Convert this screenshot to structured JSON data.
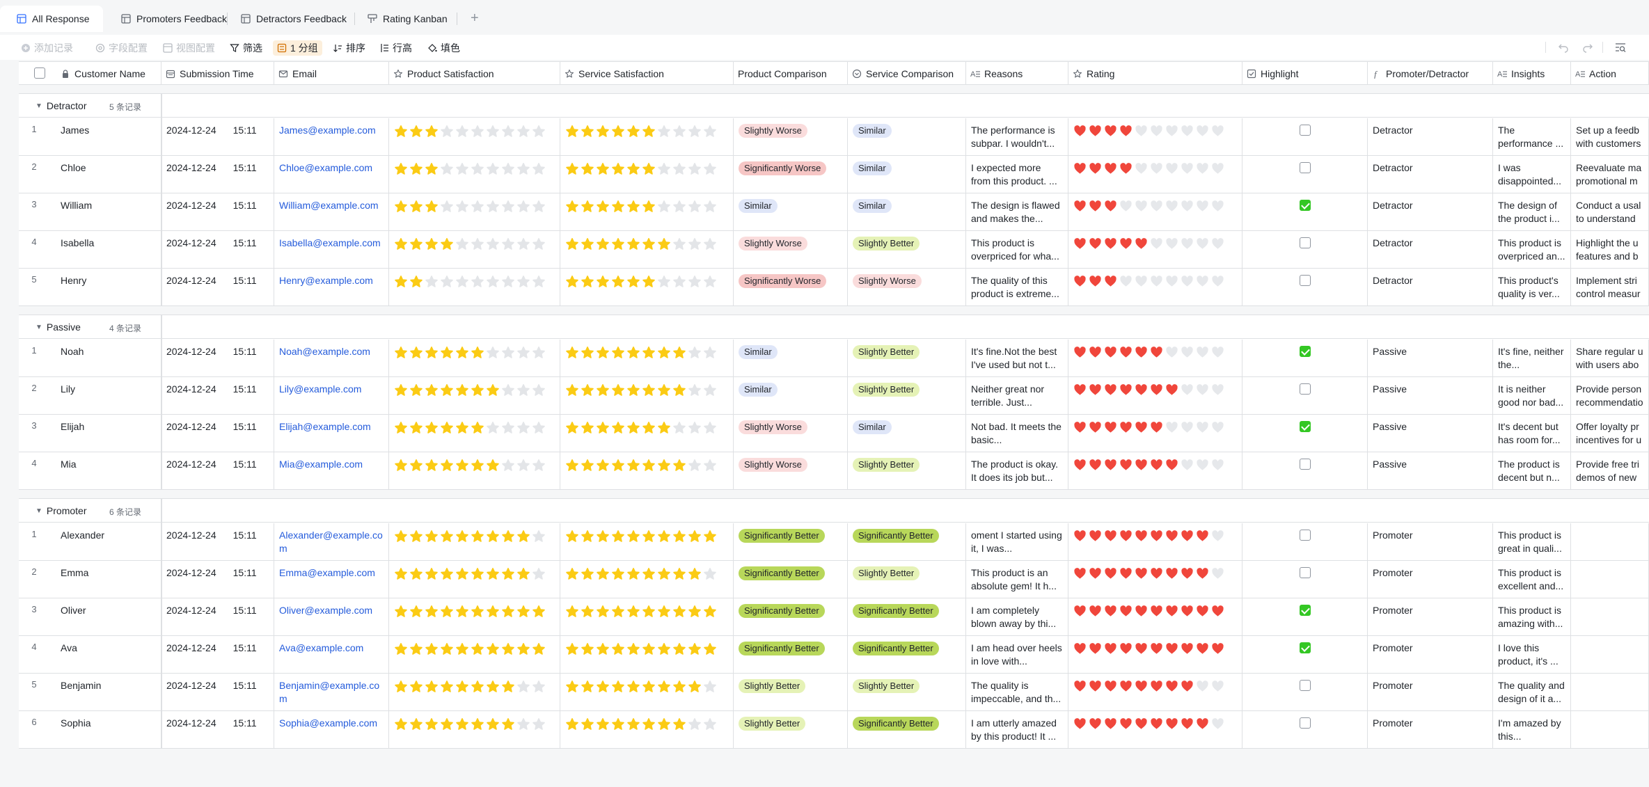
{
  "tabs": [
    {
      "label": "All Response",
      "active": true
    },
    {
      "label": "Promoters Feedback",
      "active": false
    },
    {
      "label": "Detractors Feedback",
      "active": false
    },
    {
      "label": "Rating Kanban",
      "active": false
    }
  ],
  "toolbar": {
    "add_record": "添加记录",
    "field_config": "字段配置",
    "view_config": "视图配置",
    "filter": "筛选",
    "group": "1 分组",
    "sort": "排序",
    "row_height": "行高",
    "fill_color": "填色"
  },
  "columns": [
    {
      "key": "name",
      "label": "Customer Name",
      "icon": "lock-icon"
    },
    {
      "key": "time",
      "label": "Submission Time",
      "icon": "calendar-icon"
    },
    {
      "key": "email",
      "label": "Email",
      "icon": "mail-icon"
    },
    {
      "key": "ps",
      "label": "Product Satisfaction",
      "icon": "star-icon"
    },
    {
      "key": "ss",
      "label": "Service Satisfaction",
      "icon": "star-icon"
    },
    {
      "key": "pc",
      "label": "Product Comparison",
      "icon": "none"
    },
    {
      "key": "sc",
      "label": "Service Comparison",
      "icon": "option-icon"
    },
    {
      "key": "reasons",
      "label": "Reasons",
      "icon": "text-icon"
    },
    {
      "key": "rating",
      "label": "Rating",
      "icon": "star-icon"
    },
    {
      "key": "highlight",
      "label": "Highlight",
      "icon": "checkbox-icon"
    },
    {
      "key": "pd",
      "label": "Promoter/Detractor",
      "icon": "formula-icon"
    },
    {
      "key": "insights",
      "label": "Insights",
      "icon": "text-icon"
    },
    {
      "key": "action",
      "label": "Action",
      "icon": "text-icon"
    }
  ],
  "colors": {
    "star_on": "#fbcb14",
    "star_off": "#e3e5e8",
    "heart_on": "#f0463b",
    "heart_off": "#e6e8eb",
    "checkbox_on": "#34c724",
    "link": "#245bdb"
  },
  "groups": [
    {
      "name": "Detractor",
      "count": "5 条记录",
      "rows": [
        {
          "idx": "1",
          "name": "James",
          "date": "2024-12-24",
          "time": "15:11",
          "email": "James@example.com",
          "ps": 3,
          "ss": 6,
          "pc": "Slightly Worse",
          "sc": "Similar",
          "reasons": "The performance is subpar. I wouldn't...",
          "rating": 4,
          "highlight": false,
          "pd": "Detractor",
          "insights": "The performance ...",
          "action": "Set up a feedb with customers"
        },
        {
          "idx": "2",
          "name": "Chloe",
          "date": "2024-12-24",
          "time": "15:11",
          "email": "Chloe@example.com",
          "ps": 3,
          "ss": 6,
          "pc": "Significantly Worse",
          "sc": "Similar",
          "reasons": "I expected more from this product. ...",
          "rating": 4,
          "highlight": false,
          "pd": "Detractor",
          "insights": "I was disappointed...",
          "action": "Reevaluate ma promotional m"
        },
        {
          "idx": "3",
          "name": "William",
          "date": "2024-12-24",
          "time": "15:11",
          "email": "William@example.com",
          "ps": 3,
          "ss": 6,
          "pc": "Similar",
          "sc": "Similar",
          "reasons": "The design is flawed and makes the...",
          "rating": 3,
          "highlight": true,
          "pd": "Detractor",
          "insights": "The design of the product i...",
          "action": "Conduct a usal to understand"
        },
        {
          "idx": "4",
          "name": "Isabella",
          "date": "2024-12-24",
          "time": "15:11",
          "email": "Isabella@example.com",
          "ps": 4,
          "ss": 7,
          "pc": "Slightly Worse",
          "sc": "Slightly Better",
          "reasons": "This product is overpriced for wha...",
          "rating": 5,
          "highlight": false,
          "pd": "Detractor",
          "insights": "This product is overpriced an...",
          "action": "Highlight the u features and b"
        },
        {
          "idx": "5",
          "name": "Henry",
          "date": "2024-12-24",
          "time": "15:11",
          "email": "Henry@example.com",
          "ps": 2,
          "ss": 6,
          "pc": "Significantly Worse",
          "sc": "Slightly Worse",
          "reasons": "The quality of this product is extreme...",
          "rating": 3,
          "highlight": false,
          "pd": "Detractor",
          "insights": "This product's quality is ver...",
          "action": "Implement stri control measur"
        }
      ]
    },
    {
      "name": "Passive",
      "count": "4 条记录",
      "rows": [
        {
          "idx": "1",
          "name": "Noah",
          "date": "2024-12-24",
          "time": "15:11",
          "email": "Noah@example.com",
          "ps": 6,
          "ss": 8,
          "pc": "Similar",
          "sc": "Slightly Better",
          "reasons": "It's fine.Not the best I've used but not t...",
          "rating": 6,
          "highlight": true,
          "pd": "Passive",
          "insights": "It's fine, neither the...",
          "action": "Share regular u with users abo"
        },
        {
          "idx": "2",
          "name": "Lily",
          "date": "2024-12-24",
          "time": "15:11",
          "email": "Lily@example.com",
          "ps": 7,
          "ss": 8,
          "pc": "Similar",
          "sc": "Slightly Better",
          "reasons": "Neither great nor terrible. Just...",
          "rating": 7,
          "highlight": false,
          "pd": "Passive",
          "insights": "It is neither good nor bad...",
          "action": "Provide person recommendatio"
        },
        {
          "idx": "3",
          "name": "Elijah",
          "date": "2024-12-24",
          "time": "15:11",
          "email": "Elijah@example.com",
          "ps": 6,
          "ss": 7,
          "pc": "Slightly Worse",
          "sc": "Similar",
          "reasons": "Not bad. It meets the basic...",
          "rating": 6,
          "highlight": true,
          "pd": "Passive",
          "insights": "It's decent but has room for...",
          "action": "Offer loyalty pr incentives for u"
        },
        {
          "idx": "4",
          "name": "Mia",
          "date": "2024-12-24",
          "time": "15:11",
          "email": "Mia@example.com",
          "ps": 7,
          "ss": 8,
          "pc": "Slightly Worse",
          "sc": "Slightly Better",
          "reasons": "The product is okay. It does its job but...",
          "rating": 7,
          "highlight": false,
          "pd": "Passive",
          "insights": "The product is decent but n...",
          "action": "Provide free tri demos of new"
        }
      ]
    },
    {
      "name": "Promoter",
      "count": "6 条记录",
      "rows": [
        {
          "idx": "1",
          "name": "Alexander",
          "date": "2024-12-24",
          "time": "15:11",
          "email": "Alexander@example.com",
          "ps": 9,
          "ss": 10,
          "pc": "Significantly Better",
          "sc": "Significantly Better",
          "reasons": "oment I started using it, I was...",
          "rating": 9,
          "highlight": false,
          "pd": "Promoter",
          "insights": "This product is great in quali...",
          "action": ""
        },
        {
          "idx": "2",
          "name": "Emma",
          "date": "2024-12-24",
          "time": "15:11",
          "email": "Emma@example.com",
          "ps": 9,
          "ss": 9,
          "pc": "Significantly Better",
          "sc": "Slightly Better",
          "reasons": "This product is an absolute gem! It h...",
          "rating": 9,
          "highlight": false,
          "pd": "Promoter",
          "insights": "This product is excellent and...",
          "action": ""
        },
        {
          "idx": "3",
          "name": "Oliver",
          "date": "2024-12-24",
          "time": "15:11",
          "email": "Oliver@example.com",
          "ps": 10,
          "ss": 10,
          "pc": "Significantly Better",
          "sc": "Significantly Better",
          "reasons": "I am completely blown away by thi...",
          "rating": 10,
          "highlight": true,
          "pd": "Promoter",
          "insights": "This product is amazing with...",
          "action": ""
        },
        {
          "idx": "4",
          "name": "Ava",
          "date": "2024-12-24",
          "time": "15:11",
          "email": "Ava@example.com",
          "ps": 10,
          "ss": 10,
          "pc": "Significantly Better",
          "sc": "Significantly Better",
          "reasons": "I am head over heels in love with...",
          "rating": 10,
          "highlight": true,
          "pd": "Promoter",
          "insights": "I love this product, it's ...",
          "action": ""
        },
        {
          "idx": "5",
          "name": "Benjamin",
          "date": "2024-12-24",
          "time": "15:11",
          "email": "Benjamin@example.com",
          "ps": 8,
          "ss": 9,
          "pc": "Slightly Better",
          "sc": "Slightly Better",
          "reasons": "The quality is impeccable, and th...",
          "rating": 8,
          "highlight": false,
          "pd": "Promoter",
          "insights": "The quality and design of it a...",
          "action": ""
        },
        {
          "idx": "6",
          "name": "Sophia",
          "date": "2024-12-24",
          "time": "15:11",
          "email": "Sophia@example.com",
          "ps": 8,
          "ss": 8,
          "pc": "Slightly Better",
          "sc": "Significantly Better",
          "reasons": "I am utterly amazed by this product! It ...",
          "rating": 9,
          "highlight": false,
          "pd": "Promoter",
          "insights": "I'm amazed by this...",
          "action": ""
        }
      ]
    }
  ]
}
